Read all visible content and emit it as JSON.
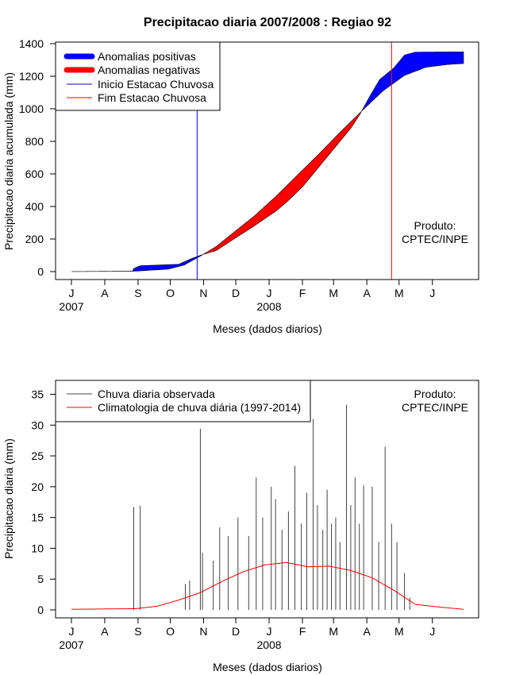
{
  "chart_data": [
    {
      "type": "area",
      "title": "Precipitacao diaria 2007/2008 : Regiao 92",
      "xlabel": "Meses (dados diarios)",
      "ylabel": "Precipitacao diaria acumulada (mm)",
      "ylim": [
        0,
        1400
      ],
      "yticks": [
        0,
        200,
        400,
        600,
        800,
        1000,
        1200,
        1400
      ],
      "month_labels": [
        "J",
        "A",
        "S",
        "O",
        "N",
        "D",
        "J",
        "F",
        "M",
        "A",
        "M",
        "J"
      ],
      "year_labels": [
        "2007",
        "2008"
      ],
      "legend": {
        "position": "top-left",
        "entries": [
          {
            "label": "Anomalias positivas",
            "color": "#0000ff",
            "style": "thick"
          },
          {
            "label": "Anomalias negativas",
            "color": "#ff0000",
            "style": "thick"
          },
          {
            "label": "Inicio Estacao Chuvosa",
            "color": "#0000ff",
            "style": "thin"
          },
          {
            "label": "Fim Estacao Chuvosa",
            "color": "#ff0000",
            "style": "thin"
          }
        ]
      },
      "product_label": [
        "Produto:",
        "CPTEC/INPE"
      ],
      "rainy_season_start_day": 117,
      "rainy_season_end_day": 298,
      "observed_cumulative": [
        {
          "day": 0,
          "value": 0
        },
        {
          "day": 57,
          "value": 2
        },
        {
          "day": 58,
          "value": 19
        },
        {
          "day": 64,
          "value": 36
        },
        {
          "day": 100,
          "value": 45
        },
        {
          "day": 110,
          "value": 75
        },
        {
          "day": 120,
          "value": 100
        },
        {
          "day": 135,
          "value": 130
        },
        {
          "day": 150,
          "value": 195
        },
        {
          "day": 170,
          "value": 280
        },
        {
          "day": 190,
          "value": 370
        },
        {
          "day": 200,
          "value": 425
        },
        {
          "day": 215,
          "value": 520
        },
        {
          "day": 230,
          "value": 640
        },
        {
          "day": 245,
          "value": 760
        },
        {
          "day": 260,
          "value": 880
        },
        {
          "day": 268,
          "value": 960
        },
        {
          "day": 278,
          "value": 1080
        },
        {
          "day": 287,
          "value": 1180
        },
        {
          "day": 300,
          "value": 1250
        },
        {
          "day": 310,
          "value": 1330
        },
        {
          "day": 320,
          "value": 1348
        },
        {
          "day": 365,
          "value": 1350
        }
      ],
      "climatology_cumulative": [
        {
          "day": 0,
          "value": 0
        },
        {
          "day": 60,
          "value": 3
        },
        {
          "day": 90,
          "value": 15
        },
        {
          "day": 105,
          "value": 40
        },
        {
          "day": 120,
          "value": 95
        },
        {
          "day": 135,
          "value": 155
        },
        {
          "day": 150,
          "value": 235
        },
        {
          "day": 170,
          "value": 340
        },
        {
          "day": 190,
          "value": 460
        },
        {
          "day": 210,
          "value": 590
        },
        {
          "day": 230,
          "value": 720
        },
        {
          "day": 250,
          "value": 855
        },
        {
          "day": 270,
          "value": 985
        },
        {
          "day": 290,
          "value": 1110
        },
        {
          "day": 310,
          "value": 1205
        },
        {
          "day": 330,
          "value": 1255
        },
        {
          "day": 350,
          "value": 1272
        },
        {
          "day": 365,
          "value": 1278
        }
      ]
    },
    {
      "type": "bar",
      "xlabel": "Meses (dados diarios)",
      "ylabel": "Precipitacao diaria (mm)",
      "ylim": [
        0,
        37
      ],
      "yticks": [
        0,
        5,
        10,
        15,
        20,
        25,
        30,
        35
      ],
      "month_labels": [
        "J",
        "A",
        "S",
        "O",
        "N",
        "D",
        "J",
        "F",
        "M",
        "A",
        "M",
        "J"
      ],
      "year_labels": [
        "2007",
        "2008"
      ],
      "legend": {
        "position": "top-left",
        "entries": [
          {
            "label": "Chuva diaria observada",
            "color": "#444444"
          },
          {
            "label": "Climatologia de chuva diária (1997-2014)",
            "color": "#ff0000"
          }
        ]
      },
      "product_label": [
        "Produto:",
        "CPTEC/INPE"
      ],
      "observed_daily_peaks": [
        {
          "day": 58,
          "value": 16.7
        },
        {
          "day": 64,
          "value": 16.9
        },
        {
          "day": 106,
          "value": 4.2
        },
        {
          "day": 110,
          "value": 4.8
        },
        {
          "day": 120,
          "value": 29.4
        },
        {
          "day": 122,
          "value": 9.3
        },
        {
          "day": 132,
          "value": 8.0
        },
        {
          "day": 138,
          "value": 13.4
        },
        {
          "day": 146,
          "value": 12.0
        },
        {
          "day": 155,
          "value": 15.0
        },
        {
          "day": 165,
          "value": 12.0
        },
        {
          "day": 172,
          "value": 21.5
        },
        {
          "day": 178,
          "value": 15.0
        },
        {
          "day": 186,
          "value": 20.0
        },
        {
          "day": 190,
          "value": 18.0
        },
        {
          "day": 196,
          "value": 13.0
        },
        {
          "day": 202,
          "value": 16.0
        },
        {
          "day": 208,
          "value": 23.4
        },
        {
          "day": 214,
          "value": 14.0
        },
        {
          "day": 219,
          "value": 19.0
        },
        {
          "day": 225,
          "value": 31.0
        },
        {
          "day": 229,
          "value": 17.0
        },
        {
          "day": 234,
          "value": 13.0
        },
        {
          "day": 238,
          "value": 19.5
        },
        {
          "day": 242,
          "value": 14.0
        },
        {
          "day": 246,
          "value": 15.0
        },
        {
          "day": 250,
          "value": 11.0
        },
        {
          "day": 256,
          "value": 33.3
        },
        {
          "day": 260,
          "value": 17.0
        },
        {
          "day": 264,
          "value": 21.5
        },
        {
          "day": 268,
          "value": 14.0
        },
        {
          "day": 272,
          "value": 20.2
        },
        {
          "day": 280,
          "value": 20.0
        },
        {
          "day": 286,
          "value": 11.0
        },
        {
          "day": 292,
          "value": 26.5
        },
        {
          "day": 298,
          "value": 14.0
        },
        {
          "day": 303,
          "value": 11.0
        },
        {
          "day": 310,
          "value": 6.0
        },
        {
          "day": 315,
          "value": 2.0
        }
      ],
      "climatology_daily": [
        {
          "day": 0,
          "value": 0.1
        },
        {
          "day": 60,
          "value": 0.2
        },
        {
          "day": 80,
          "value": 0.6
        },
        {
          "day": 100,
          "value": 1.6
        },
        {
          "day": 120,
          "value": 2.8
        },
        {
          "day": 140,
          "value": 4.6
        },
        {
          "day": 160,
          "value": 6.2
        },
        {
          "day": 180,
          "value": 7.3
        },
        {
          "day": 200,
          "value": 7.7
        },
        {
          "day": 220,
          "value": 7.0
        },
        {
          "day": 240,
          "value": 7.1
        },
        {
          "day": 260,
          "value": 6.4
        },
        {
          "day": 280,
          "value": 5.2
        },
        {
          "day": 300,
          "value": 3.2
        },
        {
          "day": 320,
          "value": 0.9
        },
        {
          "day": 340,
          "value": 0.5
        },
        {
          "day": 365,
          "value": 0.1
        }
      ]
    }
  ]
}
